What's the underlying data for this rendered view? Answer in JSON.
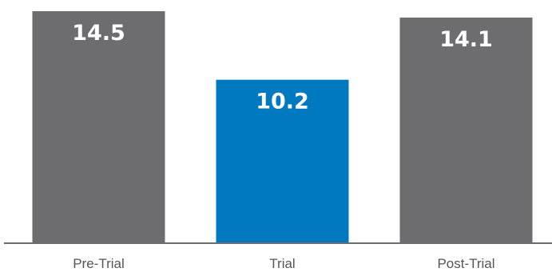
{
  "chart_data": {
    "type": "bar",
    "title": "",
    "xlabel": "",
    "ylabel": "",
    "categories": [
      "Pre-Trial",
      "Trial",
      "Post-Trial"
    ],
    "values": [
      14.5,
      10.2,
      14.1
    ],
    "value_labels": [
      "14.5",
      "10.2",
      "14.1"
    ],
    "colors": [
      "#6d6d70",
      "#0079c1",
      "#6d6d70"
    ],
    "ylim": [
      0,
      14.9
    ],
    "grid": false,
    "legend": "none"
  }
}
